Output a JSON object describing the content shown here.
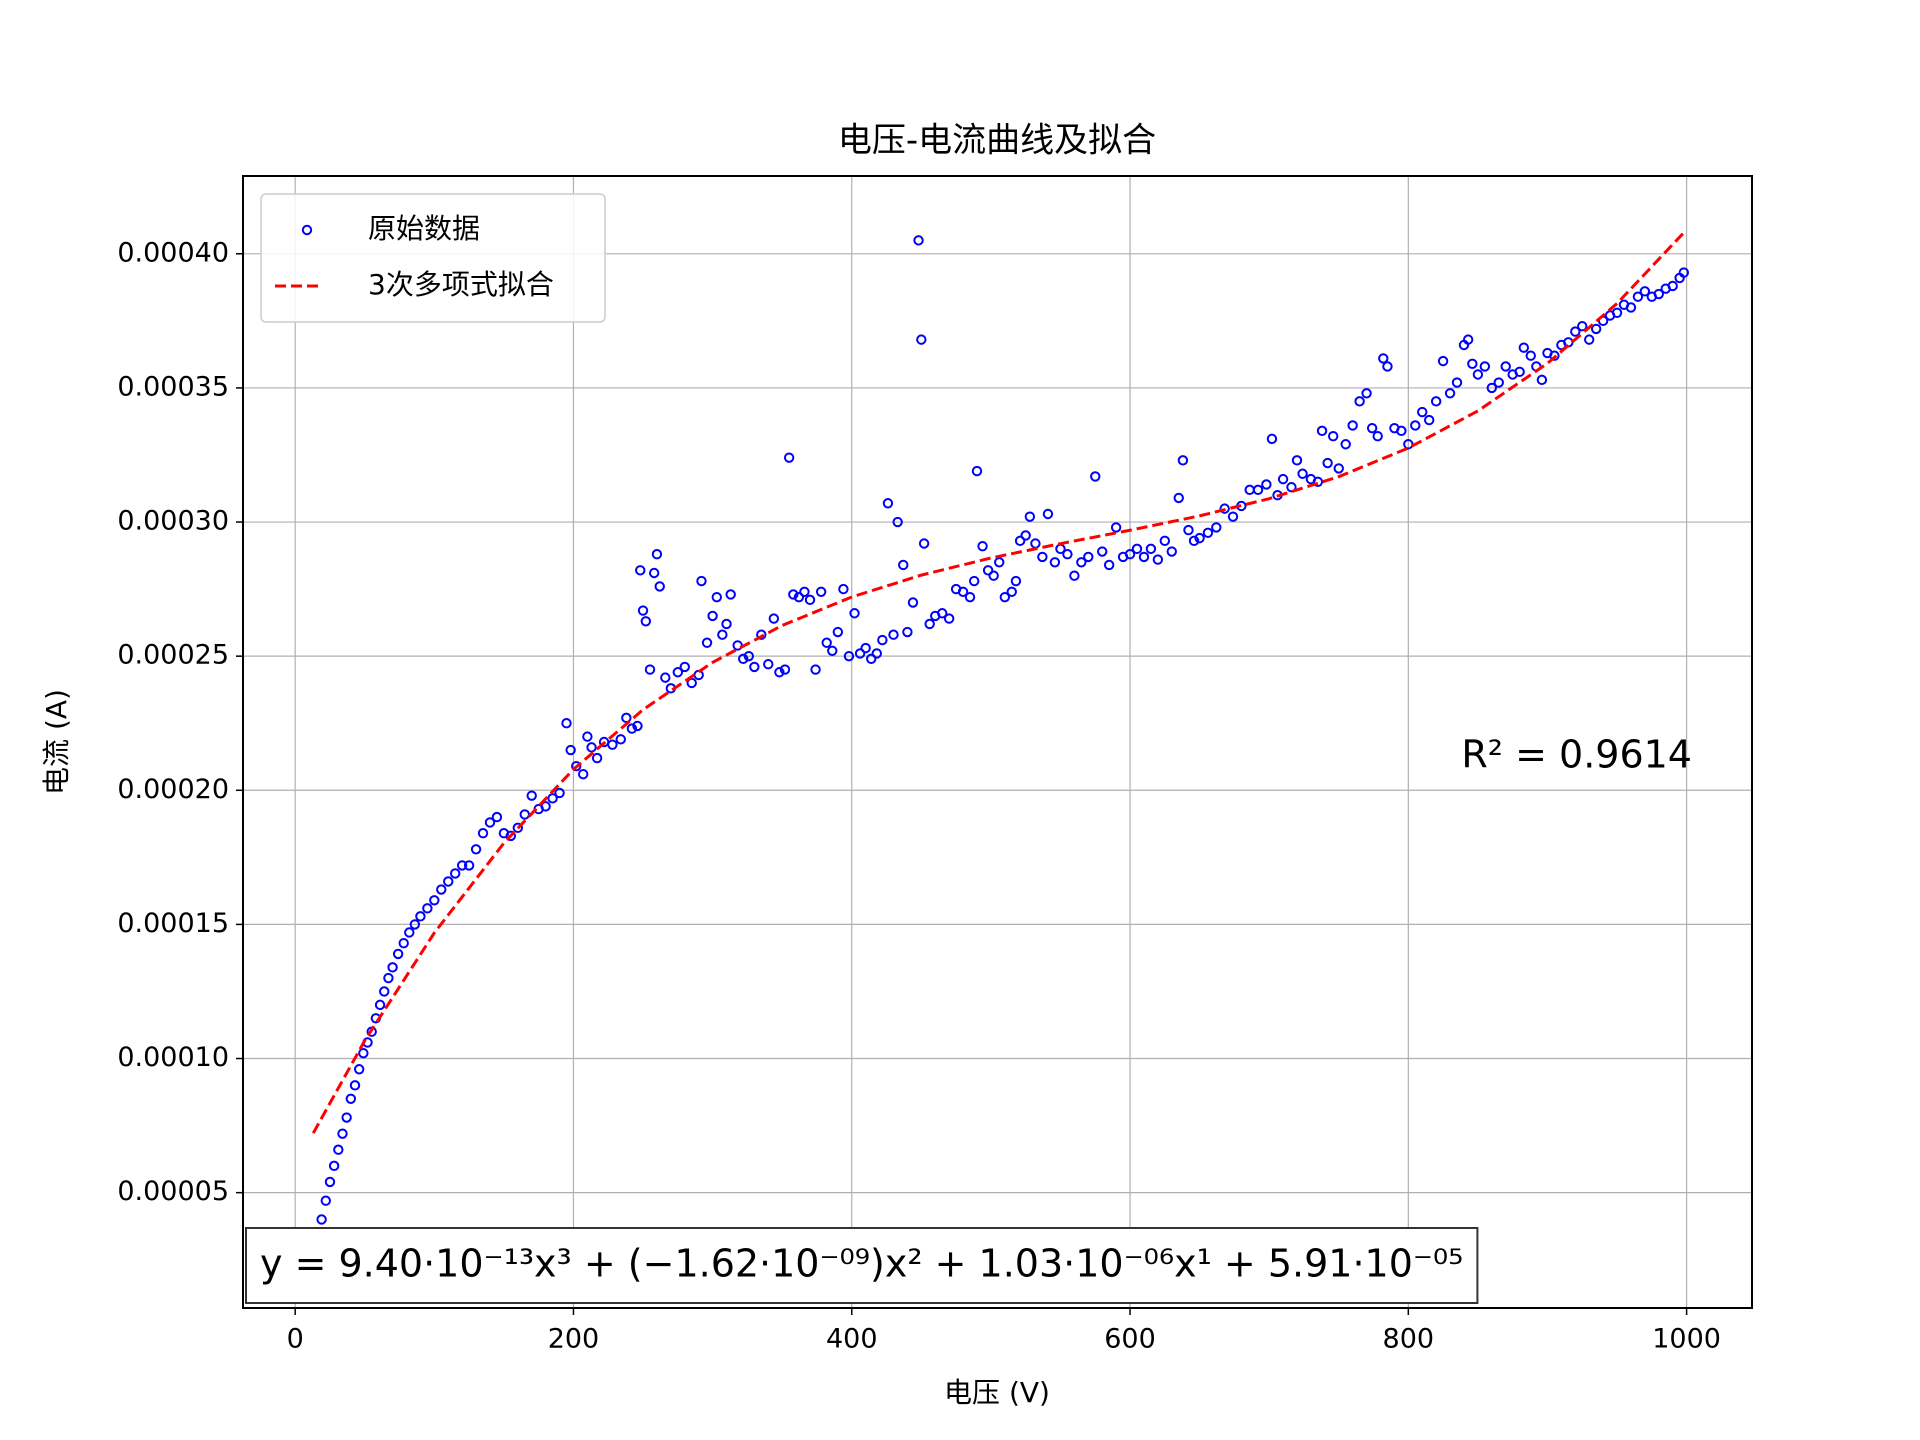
{
  "chart_data": {
    "type": "scatter",
    "title": "电压-电流曲线及拟合",
    "xlabel": "电压 (V)",
    "ylabel": "电流 (A)",
    "xlim": [
      -37.5,
      1047
    ],
    "ylim": [
      7e-06,
      0.000429
    ],
    "xticks": [
      0,
      200,
      400,
      600,
      800,
      1000
    ],
    "yticks": [
      5e-05,
      {
        "value": 0.0001,
        "label": "0.00010"
      },
      0.00015,
      {
        "value": 0.0002,
        "label": "0.00020"
      },
      0.00025,
      {
        "value": 0.0003,
        "label": "0.00030"
      },
      0.00035,
      {
        "value": 0.0004,
        "label": "0.00040"
      }
    ],
    "grid": true,
    "legend": "upper left",
    "annotations": [
      "y = 9.40·10⁻¹³x³ + (−1.62·10⁻⁰⁹)x² + 1.03·10⁻⁰⁶x¹ + 5.91·10⁻⁰⁵",
      "R² = 0.9614"
    ],
    "series": [
      {
        "name": "原始数据",
        "type": "scatter",
        "color": "#0000ff",
        "x": [
          13,
          16,
          19,
          22,
          25,
          28,
          31,
          34,
          37,
          40,
          43,
          46,
          49,
          52,
          55,
          58,
          61,
          64,
          67,
          70,
          74,
          78,
          82,
          86,
          90,
          95,
          100,
          105,
          110,
          115,
          120,
          125,
          130,
          135,
          140,
          145,
          150,
          155,
          160,
          165,
          170,
          175,
          180,
          185,
          190,
          195,
          198,
          202,
          207,
          210,
          213,
          217,
          222,
          228,
          234,
          238,
          242,
          246,
          248,
          250,
          252,
          255,
          258,
          260,
          262,
          266,
          270,
          275,
          280,
          285,
          290,
          292,
          296,
          300,
          303,
          307,
          310,
          313,
          318,
          322,
          326,
          330,
          335,
          340,
          344,
          348,
          352,
          355,
          358,
          362,
          366,
          370,
          374,
          378,
          382,
          386,
          390,
          394,
          398,
          402,
          406,
          410,
          414,
          418,
          422,
          426,
          430,
          433,
          437,
          440,
          444,
          448,
          450,
          452,
          456,
          460,
          465,
          470,
          475,
          480,
          485,
          488,
          490,
          494,
          498,
          502,
          506,
          510,
          515,
          518,
          521,
          525,
          528,
          532,
          537,
          541,
          546,
          550,
          555,
          560,
          565,
          570,
          575,
          580,
          585,
          590,
          595,
          600,
          605,
          610,
          615,
          620,
          625,
          630,
          635,
          638,
          642,
          646,
          650,
          656,
          662,
          668,
          674,
          680,
          686,
          692,
          698,
          702,
          706,
          710,
          716,
          720,
          724,
          730,
          735,
          738,
          742,
          746,
          750,
          755,
          760,
          765,
          770,
          774,
          778,
          782,
          785,
          790,
          795,
          800,
          805,
          810,
          815,
          820,
          825,
          830,
          835,
          840,
          843,
          846,
          850,
          855,
          860,
          865,
          870,
          875,
          880,
          883,
          888,
          892,
          896,
          900,
          905,
          910,
          915,
          920,
          925,
          930,
          935,
          940,
          945,
          950,
          955,
          960,
          965,
          970,
          975,
          980,
          985,
          990,
          995,
          998
        ],
        "values": [
          2.85e-05,
          3.3e-05,
          4e-05,
          4.7e-05,
          5.4e-05,
          6e-05,
          6.6e-05,
          7.2e-05,
          7.8e-05,
          8.5e-05,
          9e-05,
          9.6e-05,
          0.000102,
          0.000106,
          0.00011,
          0.000115,
          0.00012,
          0.000125,
          0.00013,
          0.000134,
          0.000139,
          0.000143,
          0.000147,
          0.00015,
          0.000153,
          0.000156,
          0.000159,
          0.000163,
          0.000166,
          0.000169,
          0.000172,
          0.000172,
          0.000178,
          0.000184,
          0.000188,
          0.00019,
          0.000184,
          0.000183,
          0.000186,
          0.000191,
          0.000198,
          0.000193,
          0.000194,
          0.000197,
          0.000199,
          0.000225,
          0.000215,
          0.000209,
          0.000206,
          0.00022,
          0.000216,
          0.000212,
          0.000218,
          0.000217,
          0.000219,
          0.000227,
          0.000223,
          0.000224,
          0.000282,
          0.000267,
          0.000263,
          0.000245,
          0.000281,
          0.000288,
          0.000276,
          0.000242,
          0.000238,
          0.000244,
          0.000246,
          0.00024,
          0.000243,
          0.000278,
          0.000255,
          0.000265,
          0.000272,
          0.000258,
          0.000262,
          0.000273,
          0.000254,
          0.000249,
          0.00025,
          0.000246,
          0.000258,
          0.000247,
          0.000264,
          0.000244,
          0.000245,
          0.000324,
          0.000273,
          0.000272,
          0.000274,
          0.000271,
          0.000245,
          0.000274,
          0.000255,
          0.000252,
          0.000259,
          0.000275,
          0.00025,
          0.000266,
          0.000251,
          0.000253,
          0.000249,
          0.000251,
          0.000256,
          0.000307,
          0.000258,
          0.0003,
          0.000284,
          0.000259,
          0.00027,
          0.000405,
          0.000368,
          0.000292,
          0.000262,
          0.000265,
          0.000266,
          0.000264,
          0.000275,
          0.000274,
          0.000272,
          0.000278,
          0.000319,
          0.000291,
          0.000282,
          0.00028,
          0.000285,
          0.000272,
          0.000274,
          0.000278,
          0.000293,
          0.000295,
          0.000302,
          0.000292,
          0.000287,
          0.000303,
          0.000285,
          0.00029,
          0.000288,
          0.00028,
          0.000285,
          0.000287,
          0.000317,
          0.000289,
          0.000284,
          0.000298,
          0.000287,
          0.000288,
          0.00029,
          0.000287,
          0.00029,
          0.000286,
          0.000293,
          0.000289,
          0.000309,
          0.000323,
          0.000297,
          0.000293,
          0.000294,
          0.000296,
          0.000298,
          0.000305,
          0.000302,
          0.000306,
          0.000312,
          0.000312,
          0.000314,
          0.000331,
          0.00031,
          0.000316,
          0.000313,
          0.000323,
          0.000318,
          0.000316,
          0.000315,
          0.000334,
          0.000322,
          0.000332,
          0.00032,
          0.000329,
          0.000336,
          0.000345,
          0.000348,
          0.000335,
          0.000332,
          0.000361,
          0.000358,
          0.000335,
          0.000334,
          0.000329,
          0.000336,
          0.000341,
          0.000338,
          0.000345,
          0.00036,
          0.000348,
          0.000352,
          0.000366,
          0.000368,
          0.000359,
          0.000355,
          0.000358,
          0.00035,
          0.000352,
          0.000358,
          0.000355,
          0.000356,
          0.000365,
          0.000362,
          0.000358,
          0.000353,
          0.000363,
          0.000362,
          0.000366,
          0.000367,
          0.000371,
          0.000373,
          0.000368,
          0.000372,
          0.000375,
          0.000377,
          0.000378,
          0.000381,
          0.00038,
          0.000384,
          0.000386,
          0.000384,
          0.000385,
          0.000387,
          0.000388,
          0.000391,
          0.000393
        ]
      },
      {
        "name": "3次多项式拟合",
        "type": "line",
        "color": "#ff0000",
        "x": [
          13,
          50,
          100,
          150,
          200,
          250,
          300,
          350,
          400,
          450,
          500,
          550,
          600,
          650,
          700,
          750,
          800,
          850,
          900,
          950,
          998
        ],
        "values": [
          7.22e-05,
          0.00010667,
          0.00014684,
          0.00018032,
          0.00020782,
          0.00023004,
          0.00024768,
          0.00026145,
          0.00027206,
          0.00028021,
          0.0002866,
          0.00029194,
          0.00029694,
          0.0003023,
          0.00030872,
          0.00031691,
          0.00032758,
          0.00034143,
          0.00035916,
          0.00038148,
          0.00040788
        ]
      }
    ]
  }
}
